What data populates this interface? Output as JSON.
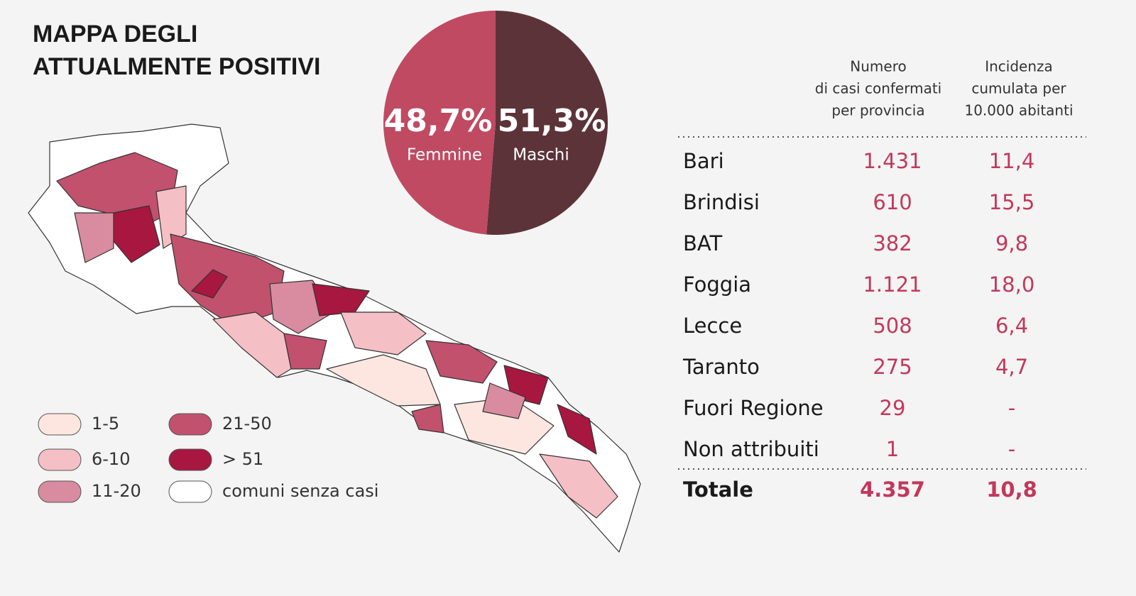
{
  "title": [
    "MAPPA DEGLI",
    "ATTUALMENTE POSITIVI"
  ],
  "chart_data": {
    "type": "pie",
    "categories": [
      "Femmine",
      "Maschi"
    ],
    "values": [
      48.7,
      51.3
    ],
    "value_labels": [
      "48,7%",
      "51,3%"
    ],
    "colors": [
      "#bf4a62",
      "#5c3339"
    ]
  },
  "map_legend": [
    {
      "label": "1-5",
      "color": "#fde6e0"
    },
    {
      "label": "6-10",
      "color": "#f5bfc6"
    },
    {
      "label": "11-20",
      "color": "#d98ba0"
    },
    {
      "label": "21-50",
      "color": "#c2516e"
    },
    {
      "label": "> 51",
      "color": "#a8173f"
    },
    {
      "label": "comuni senza casi",
      "color": "#ffffff"
    }
  ],
  "table": {
    "headers": [
      [
        "Numero",
        "di casi confermati",
        "per provincia"
      ],
      [
        "Incidenza",
        "cumulata per",
        "10.000 abitanti"
      ]
    ],
    "rows": [
      [
        "Bari",
        "1.431",
        "11,4"
      ],
      [
        "Brindisi",
        "610",
        "15,5"
      ],
      [
        "BAT",
        "382",
        "9,8"
      ],
      [
        "Foggia",
        "1.121",
        "18,0"
      ],
      [
        "Lecce",
        "508",
        "6,4"
      ],
      [
        "Taranto",
        "275",
        "4,7"
      ],
      [
        "Fuori Regione",
        "29",
        "-"
      ],
      [
        "Non attribuiti",
        "1",
        "-"
      ]
    ],
    "total": [
      "Totale",
      "4.357",
      "10,8"
    ]
  }
}
